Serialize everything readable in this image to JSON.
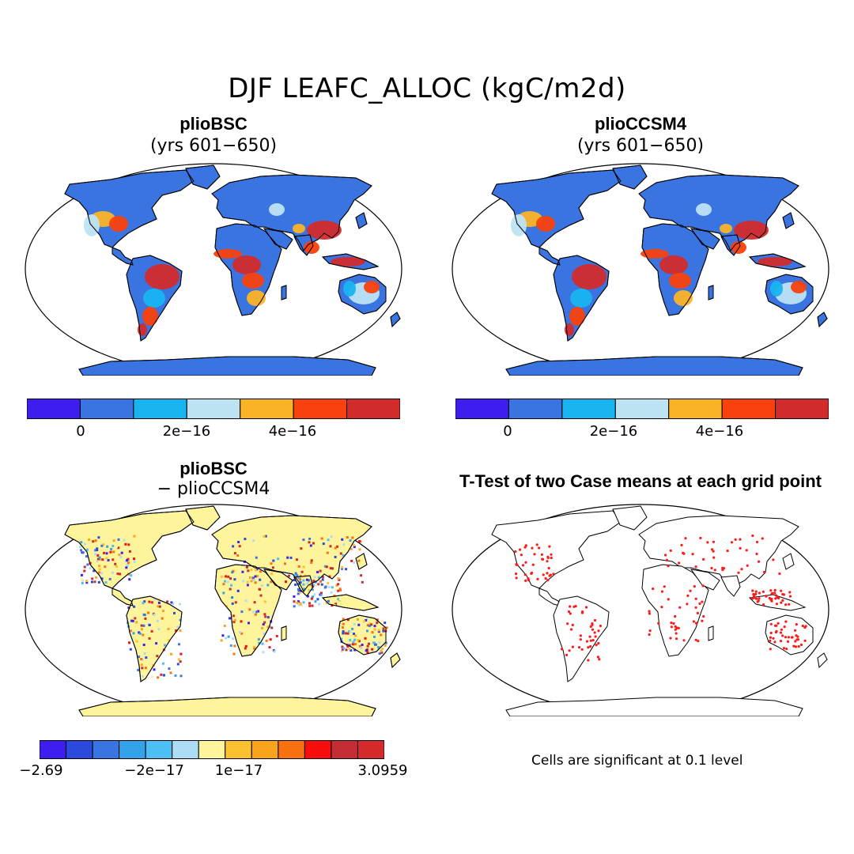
{
  "figure_title": "DJF LEAFC_ALLOC (kgC/m2d)",
  "panels": [
    {
      "id": "p1",
      "title": "plioBSC",
      "subtitle": "(yrs 601−650)",
      "fill": "shared"
    },
    {
      "id": "p2",
      "title": "plioCCSM4",
      "subtitle": "(yrs 601−650)",
      "fill": "shared"
    },
    {
      "id": "p3",
      "title": "plioBSC",
      "subtitle": "− plioCCSM4",
      "fill": "difference"
    },
    {
      "id": "p4",
      "title": "T-Test of two Case means at each grid point",
      "subtitle": "",
      "fill": "ttest"
    }
  ],
  "colorbar_shared": {
    "colors": [
      "#3d1ef0",
      "#3a74e0",
      "#18b4f0",
      "#bde3f3",
      "#fbb326",
      "#f8410c",
      "#d22b2b"
    ],
    "tick_labels": [
      "0",
      "2e−16",
      "4e−16"
    ]
  },
  "colorbar_diff": {
    "colors": [
      "#3d1ef0",
      "#2c49de",
      "#3a74e0",
      "#33a2e9",
      "#4cbff4",
      "#aedcf4",
      "#fdf49c",
      "#fbc130",
      "#f9a51c",
      "#f8700f",
      "#f80d0d",
      "#c42d33",
      "#d42a2a"
    ],
    "tick_labels": [
      "−2.69",
      "−2e−17",
      "1e−17",
      "3.0959"
    ]
  },
  "significance_note": "Cells are significant at 0.1 level",
  "map_colors": {
    "ocean": "#ffffff",
    "land_shared": "#3a74e0",
    "land_diff": "#fdf49c",
    "hot": "#d22b2b",
    "warm": "#f8410c",
    "orange": "#fbb326",
    "light": "#bde3f3",
    "cyan": "#18b4f0",
    "sig_dot": "#ff1a1a"
  }
}
